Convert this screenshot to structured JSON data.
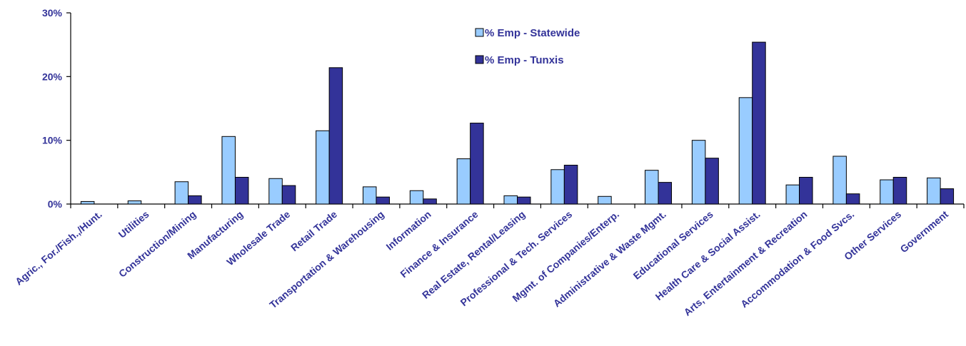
{
  "chart_data": {
    "type": "bar",
    "title": "",
    "xlabel": "",
    "ylabel": "",
    "ylim": [
      0,
      30
    ],
    "yticks": [
      "0%",
      "10%",
      "20%",
      "30%"
    ],
    "grid": false,
    "legend_position": "top-center",
    "categories": [
      "Agric., For./Fish.,/Hunt.",
      "Utilities",
      "Construction/Mining",
      "Manufacturing",
      "Wholesale Trade",
      "Retail Trade",
      "Transportation & Warehousing",
      "Information",
      "Finance & Insurance",
      "Real Estate, Rental/Leasing",
      "Professional & Tech. Services",
      "Mgmt. of Companies/Enterp.",
      "Administrative & Waste Mgmt.",
      "Educational Services",
      "Health Care & Social Assist.",
      "Arts, Entertainment & Recreation",
      "Accommodation & Food Svcs.",
      "Other Services",
      "Government"
    ],
    "series": [
      {
        "name": "% Emp - Statewide",
        "color": "#99ccff",
        "values": [
          0.4,
          0.5,
          3.5,
          10.6,
          4.0,
          11.5,
          2.7,
          2.1,
          7.1,
          1.3,
          5.4,
          1.2,
          5.3,
          10.0,
          16.7,
          3.0,
          7.5,
          3.8,
          4.1
        ]
      },
      {
        "name": "% Emp - Tunxis",
        "color": "#333399",
        "values": [
          0.0,
          0.0,
          1.3,
          4.2,
          2.9,
          21.4,
          1.1,
          0.8,
          12.7,
          1.1,
          6.1,
          0.0,
          3.4,
          7.2,
          25.4,
          4.2,
          1.6,
          4.2,
          2.4
        ]
      }
    ]
  }
}
